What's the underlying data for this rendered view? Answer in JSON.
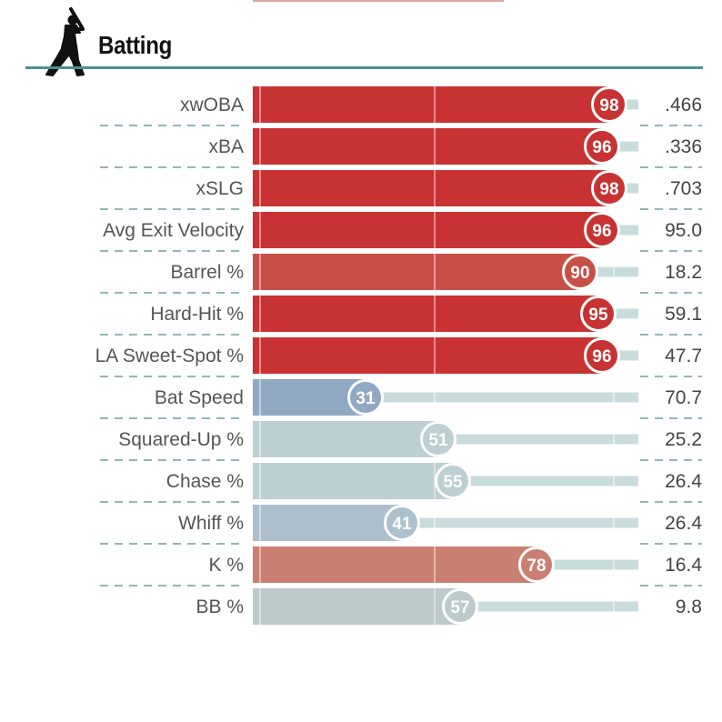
{
  "section": {
    "title": "Batting",
    "icon": "batter-silhouette-icon"
  },
  "colors": {
    "rule": "#4f8f91",
    "dash": "#6f9ea0",
    "track": "#c9dcdc",
    "text": "#555555"
  },
  "chart_data": {
    "type": "bar",
    "orientation": "horizontal",
    "value_axis": "percentile",
    "xlim": [
      0,
      100
    ],
    "categories": [
      "xwOBA",
      "xBA",
      "xSLG",
      "Avg Exit Velocity",
      "Barrel %",
      "Hard-Hit %",
      "LA Sweet-Spot %",
      "Bat Speed",
      "Squared-Up %",
      "Chase %",
      "Whiff %",
      "K %",
      "BB %"
    ],
    "percentiles": [
      98,
      96,
      98,
      96,
      90,
      95,
      96,
      31,
      51,
      55,
      41,
      78,
      57
    ],
    "values": [
      ".466",
      ".336",
      ".703",
      "95.0",
      "18.2",
      "59.1",
      "47.7",
      "70.7",
      "25.2",
      "26.4",
      "26.4",
      "16.4",
      "9.8"
    ],
    "colors": [
      "#c83232",
      "#c83232",
      "#c83232",
      "#c83232",
      "#c84f45",
      "#c83232",
      "#c83232",
      "#91a8c2",
      "#bccfd2",
      "#bccfd2",
      "#abc0cc",
      "#cb7f72",
      "#bccacb"
    ]
  }
}
